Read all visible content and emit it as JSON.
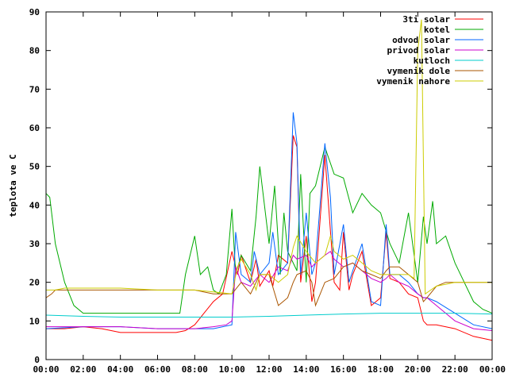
{
  "chart_data": {
    "type": "line",
    "title": "",
    "xlabel": "",
    "ylabel": "teplota ve C",
    "xlim": [
      0,
      24
    ],
    "ylim": [
      0,
      90
    ],
    "x_ticks": [
      "00:00",
      "02:00",
      "04:00",
      "06:00",
      "08:00",
      "10:00",
      "12:00",
      "14:00",
      "16:00",
      "18:00",
      "20:00",
      "22:00",
      "00:00"
    ],
    "y_ticks": [
      0,
      10,
      20,
      30,
      40,
      50,
      60,
      70,
      80,
      90
    ],
    "legend_position": "top-right",
    "grid": false,
    "series": [
      {
        "name": "3ti solar",
        "color": "#ff0000",
        "points": [
          [
            0,
            8
          ],
          [
            1,
            8
          ],
          [
            2,
            8.5
          ],
          [
            3,
            8
          ],
          [
            4,
            7
          ],
          [
            5,
            7
          ],
          [
            6,
            7
          ],
          [
            7,
            7
          ],
          [
            7.5,
            7.5
          ],
          [
            8,
            9
          ],
          [
            8.5,
            12
          ],
          [
            9,
            15
          ],
          [
            9.5,
            17
          ],
          [
            10,
            28
          ],
          [
            10.3,
            22
          ],
          [
            10.5,
            27
          ],
          [
            11,
            20
          ],
          [
            11.3,
            26
          ],
          [
            11.5,
            19
          ],
          [
            12,
            23
          ],
          [
            12.2,
            19
          ],
          [
            12.5,
            27
          ],
          [
            13,
            25
          ],
          [
            13.3,
            58
          ],
          [
            13.5,
            55
          ],
          [
            13.7,
            20
          ],
          [
            14,
            32
          ],
          [
            14.3,
            15
          ],
          [
            14.5,
            20
          ],
          [
            15,
            53
          ],
          [
            15.2,
            40
          ],
          [
            15.5,
            20
          ],
          [
            15.8,
            18
          ],
          [
            16,
            33
          ],
          [
            16.3,
            18
          ],
          [
            16.5,
            22
          ],
          [
            17,
            28
          ],
          [
            17.5,
            14
          ],
          [
            18,
            16
          ],
          [
            18.3,
            33
          ],
          [
            18.5,
            21
          ],
          [
            19,
            20
          ],
          [
            19.5,
            17
          ],
          [
            20,
            16
          ],
          [
            20.3,
            10
          ],
          [
            20.5,
            9
          ],
          [
            21,
            9
          ],
          [
            22,
            8
          ],
          [
            23,
            6
          ],
          [
            24,
            5
          ]
        ]
      },
      {
        "name": "kotel",
        "color": "#00aa00",
        "points": [
          [
            0,
            43
          ],
          [
            0.2,
            42
          ],
          [
            0.5,
            30
          ],
          [
            1,
            20
          ],
          [
            1.5,
            14
          ],
          [
            2,
            12
          ],
          [
            3,
            12
          ],
          [
            4,
            12
          ],
          [
            5,
            12
          ],
          [
            6,
            12
          ],
          [
            7,
            12
          ],
          [
            7.2,
            12
          ],
          [
            7.5,
            22
          ],
          [
            8,
            32
          ],
          [
            8.3,
            22
          ],
          [
            8.7,
            24
          ],
          [
            9,
            18
          ],
          [
            9.3,
            17
          ],
          [
            9.7,
            22
          ],
          [
            10,
            39
          ],
          [
            10.2,
            22
          ],
          [
            10.5,
            27
          ],
          [
            11,
            23
          ],
          [
            11.3,
            37
          ],
          [
            11.5,
            50
          ],
          [
            12,
            30
          ],
          [
            12.3,
            45
          ],
          [
            12.6,
            22
          ],
          [
            12.8,
            38
          ],
          [
            13,
            28
          ],
          [
            13.5,
            23
          ],
          [
            13.7,
            48
          ],
          [
            14,
            20
          ],
          [
            14.2,
            43
          ],
          [
            14.5,
            45
          ],
          [
            15,
            55
          ],
          [
            15.5,
            48
          ],
          [
            16,
            47
          ],
          [
            16.5,
            38
          ],
          [
            17,
            43
          ],
          [
            17.5,
            40
          ],
          [
            18,
            38
          ],
          [
            18.5,
            30
          ],
          [
            19,
            25
          ],
          [
            19.5,
            38
          ],
          [
            20,
            20
          ],
          [
            20.3,
            37
          ],
          [
            20.5,
            30
          ],
          [
            20.8,
            41
          ],
          [
            21,
            30
          ],
          [
            21.5,
            32
          ],
          [
            22,
            25
          ],
          [
            22.5,
            20
          ],
          [
            23,
            15
          ],
          [
            23.5,
            13
          ],
          [
            24,
            12
          ]
        ]
      },
      {
        "name": "odvod solar",
        "color": "#0066ff",
        "points": [
          [
            0,
            8
          ],
          [
            2,
            8.5
          ],
          [
            4,
            8.5
          ],
          [
            6,
            8
          ],
          [
            8,
            8
          ],
          [
            9,
            8
          ],
          [
            10,
            9
          ],
          [
            10.2,
            33
          ],
          [
            10.5,
            22
          ],
          [
            11,
            20
          ],
          [
            11.2,
            28
          ],
          [
            11.5,
            22
          ],
          [
            12,
            25
          ],
          [
            12.2,
            33
          ],
          [
            12.5,
            22
          ],
          [
            13,
            25
          ],
          [
            13.3,
            64
          ],
          [
            13.5,
            56
          ],
          [
            13.7,
            22
          ],
          [
            14,
            38
          ],
          [
            14.3,
            22
          ],
          [
            14.5,
            25
          ],
          [
            15,
            56
          ],
          [
            15.3,
            42
          ],
          [
            15.5,
            22
          ],
          [
            16,
            35
          ],
          [
            16.3,
            20
          ],
          [
            16.5,
            23
          ],
          [
            17,
            30
          ],
          [
            17.5,
            15
          ],
          [
            18,
            14
          ],
          [
            18.3,
            35
          ],
          [
            18.5,
            22
          ],
          [
            19,
            22
          ],
          [
            19.5,
            20
          ],
          [
            20,
            17
          ],
          [
            20.3,
            16
          ],
          [
            20.5,
            16
          ],
          [
            21,
            15
          ],
          [
            22,
            12
          ],
          [
            23,
            9
          ],
          [
            24,
            8
          ]
        ]
      },
      {
        "name": "privod solar",
        "color": "#cc00cc",
        "points": [
          [
            0,
            8.5
          ],
          [
            2,
            8.5
          ],
          [
            4,
            8.5
          ],
          [
            6,
            8
          ],
          [
            8,
            8
          ],
          [
            9,
            8.5
          ],
          [
            9.7,
            9
          ],
          [
            10,
            10
          ],
          [
            10.2,
            24
          ],
          [
            10.5,
            20
          ],
          [
            11,
            19
          ],
          [
            11.5,
            22
          ],
          [
            12,
            20
          ],
          [
            12.5,
            24
          ],
          [
            13,
            23
          ],
          [
            13.3,
            27
          ],
          [
            13.5,
            26
          ],
          [
            14,
            27
          ],
          [
            14.3,
            24
          ],
          [
            14.5,
            25
          ],
          [
            15,
            27
          ],
          [
            15.3,
            28
          ],
          [
            15.5,
            26
          ],
          [
            16,
            24
          ],
          [
            16.5,
            25
          ],
          [
            17,
            23
          ],
          [
            17.5,
            21
          ],
          [
            18,
            20
          ],
          [
            18.3,
            21
          ],
          [
            18.5,
            22
          ],
          [
            19,
            20
          ],
          [
            19.5,
            19
          ],
          [
            20,
            17
          ],
          [
            20.3,
            16
          ],
          [
            20.5,
            16
          ],
          [
            21,
            14
          ],
          [
            22,
            10
          ],
          [
            23,
            8
          ],
          [
            24,
            7.5
          ]
        ]
      },
      {
        "name": "kutloch",
        "color": "#00cccc",
        "points": [
          [
            0,
            11.5
          ],
          [
            2,
            11.2
          ],
          [
            4,
            11
          ],
          [
            6,
            11
          ],
          [
            8,
            11
          ],
          [
            10,
            11
          ],
          [
            12,
            11.2
          ],
          [
            14,
            11.5
          ],
          [
            16,
            11.8
          ],
          [
            18,
            12
          ],
          [
            20,
            12
          ],
          [
            22,
            12
          ],
          [
            24,
            11.8
          ]
        ]
      },
      {
        "name": "vymenik dole",
        "color": "#aa5500",
        "points": [
          [
            0,
            16
          ],
          [
            0.3,
            17
          ],
          [
            0.5,
            18
          ],
          [
            1,
            18
          ],
          [
            2,
            18
          ],
          [
            4,
            18
          ],
          [
            6,
            18
          ],
          [
            8,
            18
          ],
          [
            9,
            17
          ],
          [
            10,
            17
          ],
          [
            10.5,
            20
          ],
          [
            11,
            17
          ],
          [
            11.5,
            22
          ],
          [
            12,
            22
          ],
          [
            12.5,
            14
          ],
          [
            13,
            16
          ],
          [
            13.3,
            20
          ],
          [
            13.5,
            22
          ],
          [
            14,
            23
          ],
          [
            14.3,
            20
          ],
          [
            14.5,
            14
          ],
          [
            15,
            20
          ],
          [
            15.5,
            21
          ],
          [
            16,
            24
          ],
          [
            16.5,
            25
          ],
          [
            17,
            23
          ],
          [
            17.5,
            22
          ],
          [
            18,
            21
          ],
          [
            18.3,
            23
          ],
          [
            18.5,
            24
          ],
          [
            19,
            24
          ],
          [
            19.5,
            22
          ],
          [
            20,
            20
          ],
          [
            20.3,
            15
          ],
          [
            20.5,
            16
          ],
          [
            21,
            19
          ],
          [
            21.5,
            20
          ],
          [
            22,
            20
          ],
          [
            23,
            20
          ],
          [
            24,
            20
          ]
        ]
      },
      {
        "name": "vymenik nahore",
        "color": "#cccc00",
        "points": [
          [
            0,
            18
          ],
          [
            0.5,
            18
          ],
          [
            1,
            18.5
          ],
          [
            2,
            18.5
          ],
          [
            4,
            18.5
          ],
          [
            6,
            18
          ],
          [
            8,
            18
          ],
          [
            9,
            17.5
          ],
          [
            10,
            17
          ],
          [
            10.3,
            24
          ],
          [
            10.5,
            26
          ],
          [
            11,
            22
          ],
          [
            11.3,
            18
          ],
          [
            11.5,
            22
          ],
          [
            12,
            22
          ],
          [
            12.5,
            20
          ],
          [
            13,
            22
          ],
          [
            13.3,
            29
          ],
          [
            13.5,
            32
          ],
          [
            14,
            28
          ],
          [
            14.5,
            25
          ],
          [
            15,
            27
          ],
          [
            15.3,
            32
          ],
          [
            15.5,
            28
          ],
          [
            16,
            26
          ],
          [
            16.5,
            27
          ],
          [
            17,
            25
          ],
          [
            17.5,
            23
          ],
          [
            18,
            22
          ],
          [
            18.5,
            22
          ],
          [
            19,
            22
          ],
          [
            19.5,
            22
          ],
          [
            19.8,
            21
          ],
          [
            20,
            80
          ],
          [
            20.2,
            88
          ],
          [
            20.4,
            17
          ],
          [
            20.7,
            18
          ],
          [
            21,
            19
          ],
          [
            22,
            20
          ],
          [
            23,
            20
          ],
          [
            24,
            20
          ]
        ]
      }
    ]
  }
}
